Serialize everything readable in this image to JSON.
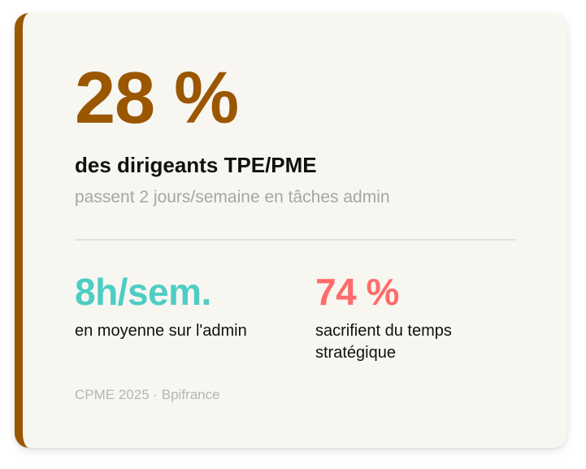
{
  "hero": {
    "value": "28 %",
    "headline": "des dirigeants TPE/PME",
    "subline": "passent 2 jours/semaine en tâches admin"
  },
  "stats": [
    {
      "value": "8h/sem.",
      "label": "en moyenne sur l'admin"
    },
    {
      "value": "74 %",
      "label": "sacrifient du temps stratégique"
    }
  ],
  "source": "CPME 2025 · Bpifrance",
  "colors": {
    "accent": "#9a5700",
    "teal": "#4ecdc4",
    "coral": "#ff6b6b",
    "card_background": "#f8f6f1"
  }
}
